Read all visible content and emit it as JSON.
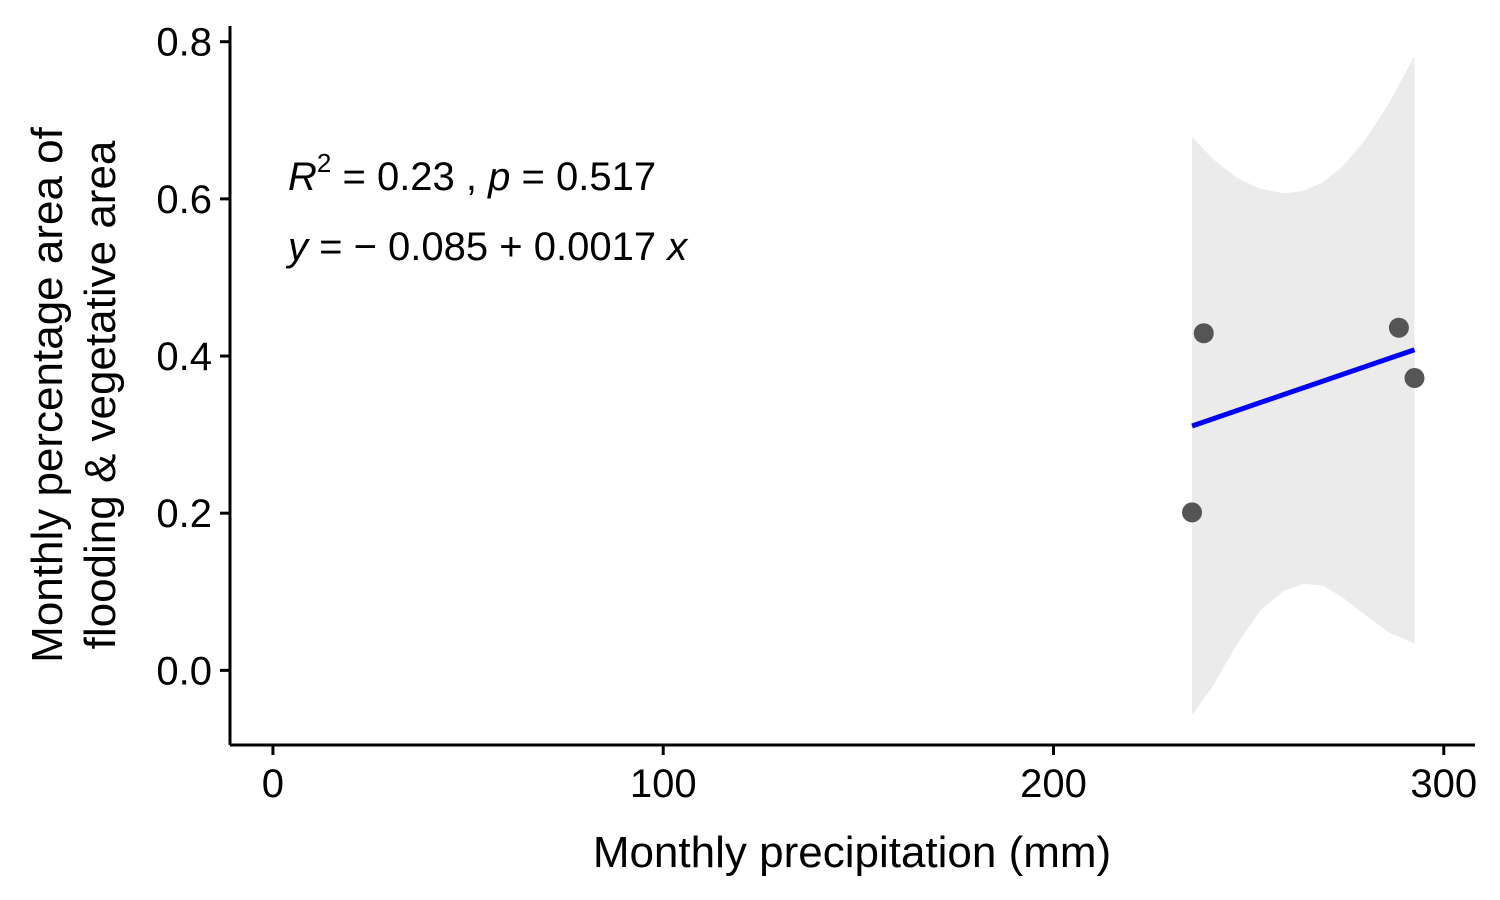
{
  "chart_data": {
    "type": "scatter",
    "xlabel": "Monthly precipitation (mm)",
    "ylabel_lines": [
      "Monthly percentage area of",
      "flooding & vegetative area"
    ],
    "xlim": [
      -11,
      308
    ],
    "ylim": [
      -0.095,
      0.82
    ],
    "x_ticks": [
      0,
      100,
      200,
      300
    ],
    "x_tick_labels": [
      "0",
      "100",
      "200",
      "300"
    ],
    "y_ticks": [
      0.0,
      0.2,
      0.4,
      0.6,
      0.8
    ],
    "y_tick_labels": [
      "0.0",
      "0.2",
      "0.4",
      "0.6",
      "0.8"
    ],
    "points": [
      {
        "x": 235.5,
        "y": 0.201
      },
      {
        "x": 238.5,
        "y": 0.429
      },
      {
        "x": 288.5,
        "y": 0.436
      },
      {
        "x": 292.5,
        "y": 0.372
      }
    ],
    "fit_line": {
      "x": [
        235.5,
        292.5
      ],
      "y": [
        0.311,
        0.408
      ],
      "color": "#0000ff"
    },
    "confidence_band": {
      "x": [
        235.5,
        241,
        247,
        253,
        259,
        264,
        269,
        274,
        280,
        286,
        292.5
      ],
      "upper": [
        0.679,
        0.65,
        0.627,
        0.613,
        0.607,
        0.61,
        0.621,
        0.641,
        0.676,
        0.722,
        0.782
      ],
      "lower": [
        -0.057,
        -0.019,
        0.033,
        0.076,
        0.101,
        0.11,
        0.108,
        0.093,
        0.07,
        0.048,
        0.034
      ],
      "color": "#ebebeb"
    },
    "annotation": {
      "r2_label": "R",
      "r2_sup": "2",
      "r2_value": " = 0.23 , ",
      "p_label": "p",
      "p_value": " = 0.517",
      "eq_y": "y",
      "eq_rest": " = − 0.085 + 0.0017 ",
      "eq_x": "x"
    },
    "point_color": "#555555",
    "grid": false,
    "legend": "none"
  }
}
